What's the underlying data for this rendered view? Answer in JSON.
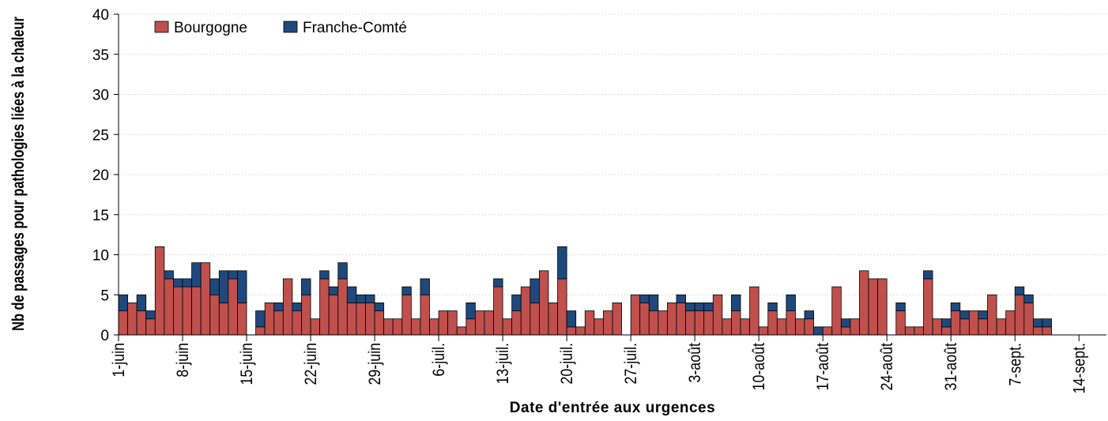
{
  "chart_data": {
    "type": "stacked_bar",
    "y_label": "Nb de passages pour pathologies liées à la chaleur",
    "x_label": "Date d'entrée aux urgences",
    "categories": [
      "1-juin",
      null,
      null,
      null,
      null,
      null,
      null,
      "8-juin",
      null,
      null,
      null,
      null,
      null,
      null,
      "15-juin",
      null,
      null,
      null,
      null,
      null,
      null,
      "22-juin",
      null,
      null,
      null,
      null,
      null,
      null,
      "29-juin",
      null,
      null,
      null,
      null,
      null,
      null,
      "6-juil.",
      null,
      null,
      null,
      null,
      null,
      null,
      "13-juil.",
      null,
      null,
      null,
      null,
      null,
      null,
      "20-juil.",
      null,
      null,
      null,
      null,
      null,
      null,
      "27-juil.",
      null,
      null,
      null,
      null,
      null,
      null,
      "3-août",
      null,
      null,
      null,
      null,
      null,
      null,
      "10-août",
      null,
      null,
      null,
      null,
      null,
      null,
      "17-août",
      null,
      null,
      null,
      null,
      null,
      null,
      "24-août",
      null,
      null,
      null,
      null,
      null,
      null,
      "31-août",
      null,
      null,
      null,
      null,
      null,
      null,
      "7-sept.",
      null,
      null,
      null,
      null,
      null,
      null,
      "14-sept.",
      null,
      null
    ],
    "series": [
      {
        "name": "Bourgogne",
        "color": "#c0504d",
        "values": [
          3,
          4,
          3,
          2,
          11,
          7,
          6,
          6,
          6,
          9,
          5,
          4,
          7,
          4,
          0,
          1,
          4,
          3,
          7,
          3,
          5,
          2,
          7,
          5,
          7,
          4,
          4,
          4,
          3,
          2,
          2,
          5,
          2,
          5,
          2,
          3,
          3,
          1,
          2,
          3,
          3,
          6,
          2,
          3,
          6,
          4,
          8,
          4,
          7,
          1,
          1,
          3,
          2,
          3,
          4,
          0,
          5,
          4,
          3,
          3,
          4,
          4,
          3,
          3,
          3,
          5,
          2,
          3,
          2,
          6,
          1,
          3,
          2,
          3,
          2,
          2,
          0,
          1,
          6,
          1,
          2,
          8,
          7,
          7,
          0,
          3,
          1,
          1,
          7,
          2,
          1,
          3,
          2,
          3,
          2,
          5,
          2,
          3,
          5,
          4,
          1,
          1,
          0,
          0,
          0,
          0,
          0,
          0
        ]
      },
      {
        "name": "Franche-Comté",
        "color": "#1f497d",
        "values": [
          2,
          0,
          2,
          1,
          0,
          1,
          1,
          1,
          3,
          0,
          2,
          4,
          1,
          4,
          0,
          2,
          0,
          1,
          0,
          1,
          2,
          0,
          1,
          1,
          2,
          2,
          1,
          1,
          1,
          0,
          0,
          1,
          0,
          2,
          0,
          0,
          0,
          0,
          2,
          0,
          0,
          1,
          0,
          2,
          0,
          3,
          0,
          0,
          4,
          2,
          0,
          0,
          0,
          0,
          0,
          0,
          0,
          1,
          2,
          0,
          0,
          1,
          1,
          1,
          1,
          0,
          0,
          2,
          0,
          0,
          0,
          1,
          0,
          2,
          0,
          1,
          1,
          0,
          0,
          1,
          0,
          0,
          0,
          0,
          0,
          1,
          0,
          0,
          1,
          0,
          1,
          1,
          1,
          0,
          1,
          0,
          0,
          0,
          1,
          1,
          1,
          1,
          0,
          0,
          0,
          0,
          0,
          0
        ]
      }
    ],
    "ylim": [
      0,
      40
    ],
    "yticks": [
      0,
      5,
      10,
      15,
      20,
      25,
      30,
      35,
      40
    ],
    "grid": true,
    "legend": "top-left"
  }
}
